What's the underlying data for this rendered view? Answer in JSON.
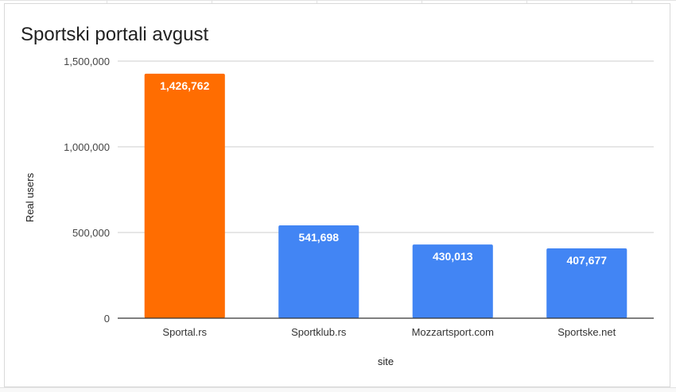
{
  "chart_data": {
    "type": "bar",
    "title": "Sportski portali avgust",
    "xlabel": "site",
    "ylabel": "Real users",
    "categories": [
      "Sportal.rs",
      "Sportklub.rs",
      "Mozzartsport.com",
      "Sportske.net"
    ],
    "values": [
      1426762,
      541698,
      430013,
      407677
    ],
    "data_labels": [
      "1,426,762",
      "541,698",
      "430,013",
      "407,677"
    ],
    "bar_colors": [
      "#ff6d01",
      "#4285f4",
      "#4285f4",
      "#4285f4"
    ],
    "yticks": [
      0,
      500000,
      1000000,
      1500000
    ],
    "ytick_labels": [
      "0",
      "500,000",
      "1,000,000",
      "1,500,000"
    ],
    "ylim": [
      0,
      1500000
    ],
    "grid": true,
    "legend": "none"
  }
}
